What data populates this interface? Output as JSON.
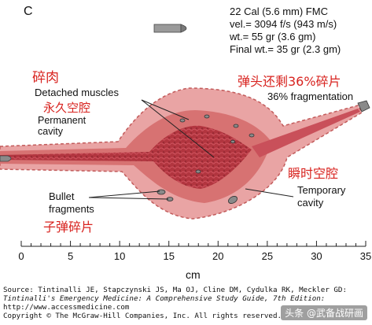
{
  "panel_letter": "C",
  "bullet_spec": {
    "line1": "22 Cal (5.6 mm) FMC",
    "line2": "vel.= 3094 f/s (943 m/s)",
    "line3": "wt.= 55 gr (3.6 gm)",
    "line4": "Final wt.= 35 gr (2.3 gm)"
  },
  "labels": {
    "detached_muscles": "Detached muscles",
    "permanent_cavity_1": "Permanent",
    "permanent_cavity_2": "cavity",
    "fragmentation": "36% fragmentation",
    "bullet_fragments_1": "Bullet",
    "bullet_fragments_2": "fragments",
    "temporary_cavity_1": "Temporary",
    "temporary_cavity_2": "cavity"
  },
  "chinese_labels": {
    "crushed_flesh": "碎肉",
    "permanent_cavity": "永久空腔",
    "fragment_percent": "弹头还剩36%碎片",
    "temporary_cavity": "瞬时空腔",
    "bullet_fragments": "子弹碎片"
  },
  "axis": {
    "ticks": [
      "0",
      "5",
      "10",
      "15",
      "20",
      "25",
      "30",
      "35"
    ],
    "tick_values": [
      0,
      5,
      10,
      15,
      20,
      25,
      30,
      35
    ],
    "range": [
      0,
      35
    ],
    "label": "cm"
  },
  "source": {
    "line1": "Source: Tintinalli JE, Stapczynski JS, Ma OJ, Cline DM, Cydulka RK, Meckler GD:",
    "line2": "Tintinalli's Emergency Medicine: A Comprehensive Study Guide, 7th Edition:",
    "line3": "http://www.accessmedicine.com",
    "line4": "Copyright © The McGraw-Hill Companies, Inc. All rights reserved."
  },
  "watermark": "头条 @武备战研画",
  "colors": {
    "tissue_outer": "#e9a4a4",
    "tissue_mid": "#d77272",
    "tissue_dark": "#b2353f",
    "label_red": "#d8231f"
  }
}
